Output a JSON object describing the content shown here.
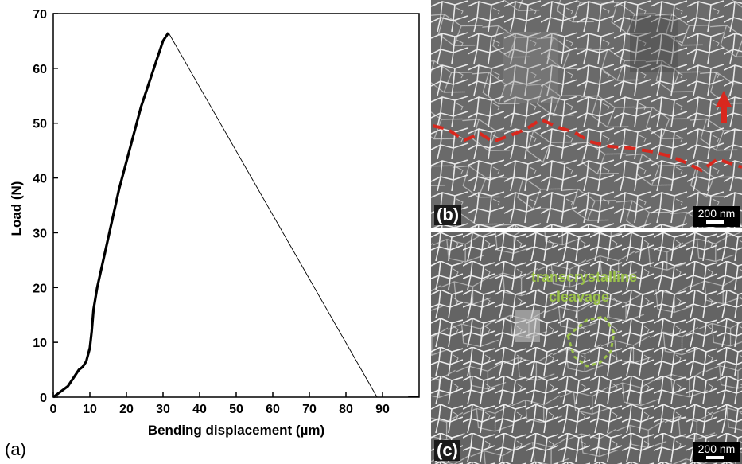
{
  "chart_data": {
    "type": "line",
    "panel_label": "(a)",
    "xlabel": "Bending displacement (µm)",
    "ylabel": "Load (N)",
    "xlim": [
      0,
      100
    ],
    "ylim": [
      0,
      70
    ],
    "xticks": [
      0,
      10,
      20,
      30,
      40,
      50,
      60,
      70,
      80,
      90
    ],
    "yticks": [
      0,
      10,
      20,
      30,
      40,
      50,
      60,
      70
    ],
    "grid": false,
    "series": [
      {
        "style": "thick",
        "x": [
          0,
          2,
          4,
          5,
          6,
          7,
          8,
          9,
          10,
          10.5,
          11,
          11.5,
          12,
          14,
          16,
          18,
          20,
          22,
          24,
          26,
          28,
          30,
          31,
          31.5
        ],
        "y": [
          0,
          1,
          2,
          3,
          4,
          5,
          5.5,
          6.5,
          9,
          12,
          16,
          18,
          20,
          26,
          32,
          38,
          43,
          48,
          53,
          57,
          61,
          65,
          66,
          66.5
        ]
      },
      {
        "style": "thin",
        "x": [
          31.5,
          88.5,
          90
        ],
        "y": [
          66.5,
          0,
          0
        ]
      },
      {
        "style": "thin",
        "x": [
          97,
          100
        ],
        "y": [
          0.1,
          0.1
        ]
      }
    ]
  },
  "images": {
    "b": {
      "label": "(b)",
      "scale_bar": "200 nm",
      "fracture_path_color": "#d9281e",
      "arrow_color": "#d9281e"
    },
    "c": {
      "label": "(c)",
      "scale_bar": "200 nm",
      "annotation_line1": "transcrystalline",
      "annotation_line2": "cleavage",
      "annotation_color": "#9bc24a"
    }
  }
}
